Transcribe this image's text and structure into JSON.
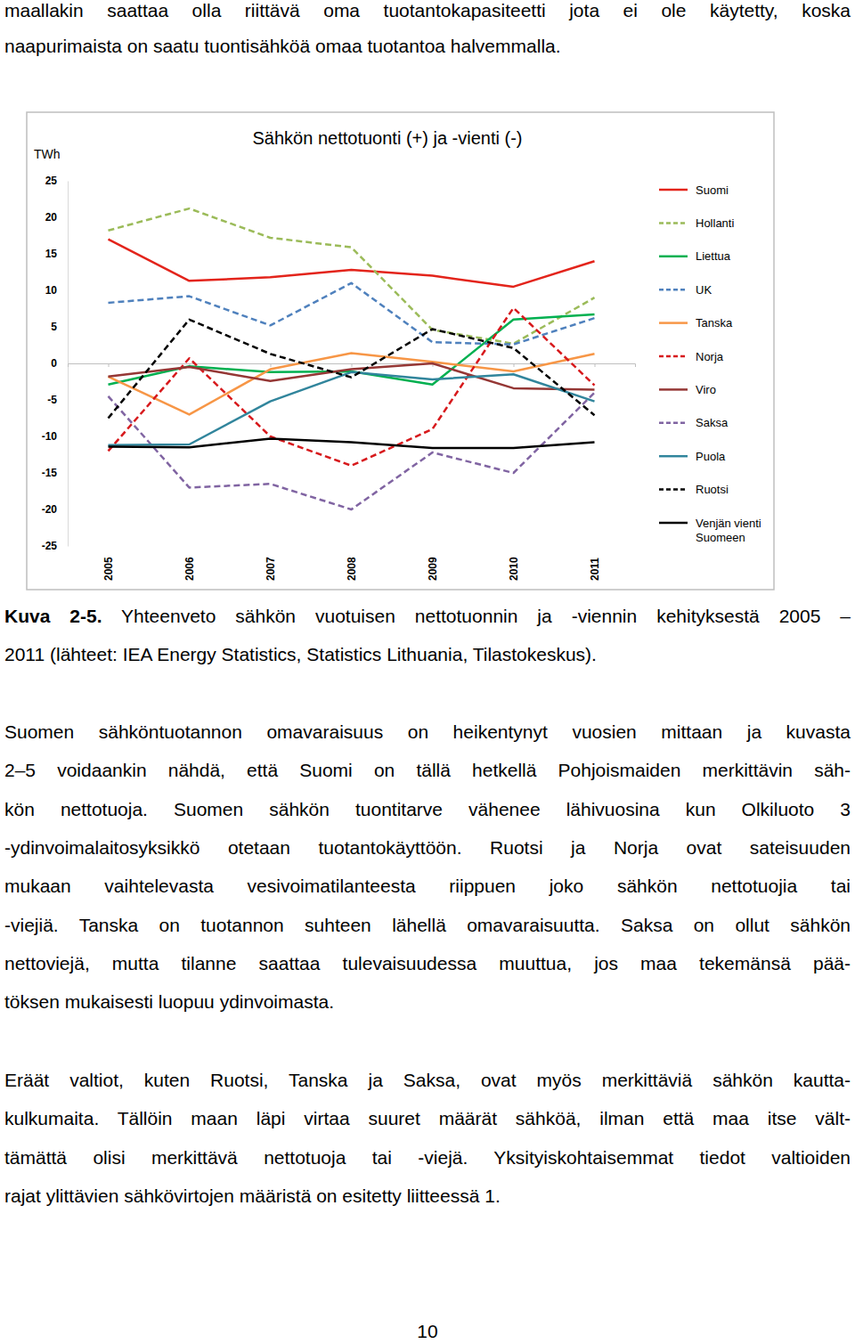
{
  "chart_data": {
    "type": "line",
    "title": "Sähkön nettotuonti (+) ja -vienti (-)",
    "y_label": "TWh",
    "categories": [
      "2005",
      "2006",
      "2007",
      "2008",
      "2009",
      "2010",
      "2011"
    ],
    "ylim": [
      -25,
      25
    ],
    "yticks": [
      -25,
      -20,
      -15,
      -10,
      -5,
      0,
      5,
      10,
      15,
      20,
      25
    ],
    "legend": "right",
    "series": [
      {
        "name": "Suomi",
        "color": "#e3241b",
        "line_style": "solid",
        "values": [
          17,
          11.3,
          11.8,
          12.8,
          12,
          10.5,
          14
        ]
      },
      {
        "name": "Hollanti",
        "color": "#9bbb59",
        "line_style": "dashed",
        "values": [
          18.2,
          21.2,
          17.2,
          15.9,
          4.6,
          2.7,
          9
        ]
      },
      {
        "name": "Liettua",
        "color": "#00b050",
        "line_style": "solid",
        "values": [
          -2.9,
          -0.4,
          -1.2,
          -1.1,
          -2.9,
          6,
          6.7
        ]
      },
      {
        "name": "UK",
        "color": "#4f81bd",
        "line_style": "dashed",
        "values": [
          8.3,
          9.2,
          5.2,
          11,
          2.9,
          2.6,
          6.2
        ]
      },
      {
        "name": "Tanska",
        "color": "#f79646",
        "line_style": "solid",
        "values": [
          -1.8,
          -7,
          -0.8,
          1.4,
          0.2,
          -1.1,
          1.3
        ]
      },
      {
        "name": "Norja",
        "color": "#d7191c",
        "line_style": "dashed",
        "values": [
          -12,
          0.7,
          -10,
          -14,
          -9,
          7.6,
          -3
        ]
      },
      {
        "name": "Viro",
        "color": "#953735",
        "line_style": "solid",
        "values": [
          -1.8,
          -0.5,
          -2.4,
          -0.8,
          0,
          -3.4,
          -3.6
        ]
      },
      {
        "name": "Saksa",
        "color": "#8064a2",
        "line_style": "dashed",
        "values": [
          -4.5,
          -17,
          -16.5,
          -20,
          -12.2,
          -15,
          -4
        ]
      },
      {
        "name": "Puola",
        "color": "#31859c",
        "line_style": "solid",
        "values": [
          -11.2,
          -11.1,
          -5.2,
          -1.2,
          -2.2,
          -1.5,
          -5.2
        ]
      },
      {
        "name": "Ruotsi",
        "color": "#000000",
        "line_style": "dashed",
        "values": [
          -7.5,
          6,
          1.3,
          -1.9,
          4.7,
          2.1,
          -7.1
        ]
      },
      {
        "name": "Venjän vienti Suomeen",
        "color": "#000000",
        "line_style": "solid",
        "values": [
          -11.4,
          -11.5,
          -10.3,
          -10.8,
          -11.6,
          -11.6,
          -10.8
        ]
      }
    ]
  },
  "document": {
    "top_lines": [
      "maallakin saattaa olla riittävä oma tuotantokapasiteetti jota ei ole käytetty, koska",
      "naapurimaista on saatu tuontisähköä omaa tuotantoa halvemmalla."
    ],
    "caption": {
      "label": "Kuva 2-5.",
      "lines": [
        "Yhteenveto sähkön vuotuisen nettotuonnin ja -viennin kehityksestä 2005 –",
        "2011 (lähteet: IEA Energy Statistics, Statistics Lithuania, Tilastokeskus)."
      ]
    },
    "paragraphs": [
      [
        "Suomen sähköntuotannon omavaraisuus on heikentynyt vuosien mittaan ja kuvasta",
        "2–5 voidaankin nähdä, että Suomi on tällä hetkellä Pohjoismaiden merkittävin säh-",
        "kön nettotuoja. Suomen sähkön tuontitarve vähenee lähivuosina kun Olkiluoto 3",
        "-ydinvoimalaitosyksikkö otetaan tuotantokäyttöön. Ruotsi ja Norja ovat sateisuuden",
        "mukaan vaihtelevasta vesivoimatilanteesta riippuen joko sähkön nettotuojia tai",
        "-viejiä. Tanska on tuotannon suhteen lähellä omavaraisuutta. Saksa on ollut sähkön",
        "nettoviejä, mutta tilanne saattaa tulevaisuudessa muuttua, jos maa tekemänsä pää-",
        "töksen mukaisesti luopuu ydinvoimasta."
      ],
      [
        "Eräät valtiot, kuten Ruotsi, Tanska ja Saksa, ovat myös merkittäviä sähkön kautta-",
        "kulkumaita. Tällöin maan läpi virtaa suuret määrät sähköä, ilman että maa itse vält-",
        "tämättä olisi merkittävä nettotuoja tai -viejä. Yksityiskohtaisemmat tiedot valtioiden",
        "rajat ylittävien sähkövirtojen määristä on esitetty liitteessä 1."
      ]
    ],
    "page_number": "10"
  }
}
